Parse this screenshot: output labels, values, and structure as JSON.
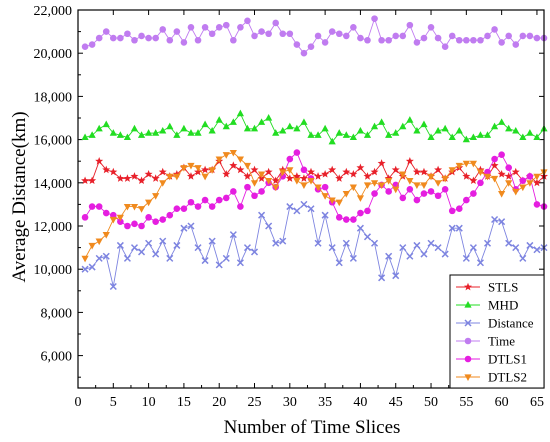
{
  "chart_data": {
    "type": "line",
    "xlabel": "Number of Time Slices",
    "ylabel": "Average Distance(km)",
    "xlim": [
      0,
      66
    ],
    "ylim": [
      4500,
      22000
    ],
    "xticks": [
      0,
      5,
      10,
      15,
      20,
      25,
      30,
      35,
      40,
      45,
      50,
      55,
      60,
      65
    ],
    "xtick_labels": [
      "0",
      "5",
      "10",
      "15",
      "20",
      "25",
      "30",
      "35",
      "40",
      "45",
      "50",
      "55",
      "60",
      "65"
    ],
    "yticks": [
      6000,
      8000,
      10000,
      12000,
      14000,
      16000,
      18000,
      20000,
      22000
    ],
    "ytick_labels": [
      "6,000",
      "8,000",
      "10,000",
      "12,000",
      "14,000",
      "16,000",
      "18,000",
      "20,000",
      "22,000"
    ],
    "grid": false,
    "legend_position": "bottom-right",
    "x": [
      1,
      2,
      3,
      4,
      5,
      6,
      7,
      8,
      9,
      10,
      11,
      12,
      13,
      14,
      15,
      16,
      17,
      18,
      19,
      20,
      21,
      22,
      23,
      24,
      25,
      26,
      27,
      28,
      29,
      30,
      31,
      32,
      33,
      34,
      35,
      36,
      37,
      38,
      39,
      40,
      41,
      42,
      43,
      44,
      45,
      46,
      47,
      48,
      49,
      50,
      51,
      52,
      53,
      54,
      55,
      56,
      57,
      58,
      59,
      60,
      61,
      62,
      63,
      64,
      65,
      66
    ],
    "series": [
      {
        "name": "STLS",
        "color": "#e8202a",
        "marker": "star",
        "values": [
          14100,
          14100,
          15000,
          14600,
          14500,
          14200,
          14200,
          14300,
          14100,
          14400,
          14200,
          14500,
          14300,
          14400,
          14700,
          14300,
          14500,
          14600,
          14600,
          15000,
          14400,
          14800,
          14600,
          14300,
          14600,
          14200,
          14500,
          14100,
          14600,
          14200,
          14300,
          14200,
          14500,
          14300,
          14400,
          14600,
          14200,
          14500,
          14400,
          14700,
          14300,
          14500,
          14900,
          14200,
          14600,
          14300,
          15000,
          14500,
          14500,
          14300,
          14600,
          14200,
          14500,
          14700,
          14300,
          14100,
          14600,
          14300,
          14800,
          14400,
          14300,
          14500,
          14100,
          14300,
          14000,
          14300
        ]
      },
      {
        "name": "MHD",
        "color": "#22dd22",
        "marker": "triangle-up",
        "values": [
          16100,
          16200,
          16500,
          16700,
          16300,
          16200,
          16100,
          16500,
          16200,
          16300,
          16300,
          16400,
          16600,
          16200,
          16500,
          16300,
          16300,
          16700,
          16400,
          16900,
          16600,
          16800,
          17200,
          16500,
          16500,
          16800,
          17000,
          16300,
          16400,
          16600,
          16500,
          16800,
          16200,
          16200,
          16500,
          15900,
          16300,
          16200,
          16100,
          16400,
          16200,
          16600,
          16800,
          16200,
          16300,
          16600,
          16900,
          16400,
          16700,
          16100,
          16400,
          16500,
          16100,
          16400,
          16000,
          16100,
          16200,
          16200,
          16600,
          16800,
          16500,
          16400,
          16100,
          16300,
          16100,
          16500
        ]
      },
      {
        "name": "Distance",
        "color": "#7d84e0",
        "marker": "x",
        "values": [
          10000,
          10100,
          10500,
          10600,
          9200,
          11100,
          10500,
          11000,
          10800,
          11200,
          10700,
          11300,
          10500,
          11100,
          11900,
          12000,
          11000,
          10400,
          11300,
          10200,
          10500,
          11600,
          10300,
          11000,
          10800,
          12500,
          12000,
          11200,
          11300,
          12900,
          12700,
          13000,
          12800,
          11200,
          12500,
          11000,
          10300,
          11200,
          10500,
          11900,
          11500,
          11200,
          9600,
          10600,
          9700,
          11000,
          10600,
          11100,
          10700,
          11200,
          11000,
          10700,
          11900,
          11900,
          10500,
          11000,
          10300,
          11200,
          12300,
          12200,
          11200,
          11000,
          10500,
          11100,
          10900,
          11000
        ]
      },
      {
        "name": "Time",
        "color": "#c07cf0",
        "marker": "circle",
        "values": [
          20300,
          20400,
          20700,
          21000,
          20700,
          20700,
          20900,
          20600,
          20800,
          20700,
          20700,
          21100,
          20600,
          21000,
          20500,
          21200,
          20600,
          21200,
          20900,
          21200,
          21300,
          20600,
          21200,
          21500,
          20800,
          21000,
          20900,
          21400,
          20900,
          20900,
          20400,
          20000,
          20300,
          20800,
          20500,
          21000,
          20900,
          20800,
          21200,
          20700,
          20600,
          21600,
          20600,
          20600,
          20800,
          20800,
          21300,
          20500,
          20700,
          21200,
          20700,
          20300,
          20800,
          20600,
          20600,
          20600,
          20600,
          20800,
          21100,
          20500,
          20800,
          20400,
          20800,
          20800,
          20700,
          20700
        ]
      },
      {
        "name": "DTLS1",
        "color": "#e51ee0",
        "marker": "circle",
        "values": [
          12400,
          12900,
          12900,
          12600,
          12500,
          12200,
          12000,
          12100,
          12000,
          12400,
          12200,
          12300,
          12500,
          12800,
          12800,
          13100,
          12900,
          13200,
          12900,
          13200,
          13300,
          13600,
          12900,
          13800,
          13400,
          13600,
          14000,
          13800,
          14300,
          15100,
          15400,
          14600,
          14200,
          13700,
          13800,
          13100,
          12400,
          12300,
          12300,
          12600,
          12700,
          13500,
          13900,
          13600,
          13900,
          13300,
          13700,
          13200,
          13500,
          13600,
          13400,
          13700,
          12700,
          12800,
          13200,
          13500,
          14000,
          14500,
          15100,
          15300,
          14700,
          13700,
          14100,
          14300,
          13000,
          12900
        ]
      },
      {
        "name": "DTLS2",
        "color": "#f08a1e",
        "marker": "triangle-down",
        "values": [
          10500,
          11100,
          11300,
          11600,
          12300,
          12400,
          12900,
          12900,
          12800,
          13100,
          13400,
          14000,
          14300,
          14300,
          14700,
          14800,
          14700,
          14300,
          14600,
          15100,
          15300,
          15400,
          15100,
          14800,
          14000,
          14400,
          14100,
          13800,
          14500,
          14600,
          14100,
          13900,
          14100,
          13800,
          13400,
          13200,
          13100,
          13500,
          13800,
          13300,
          13900,
          14000,
          13900,
          14100,
          13700,
          14400,
          14100,
          13900,
          13900,
          14300,
          14000,
          14200,
          14600,
          14800,
          14900,
          14900,
          14500,
          14300,
          14200,
          13500,
          14000,
          13600,
          13800,
          14000,
          14300,
          14500
        ]
      }
    ]
  }
}
